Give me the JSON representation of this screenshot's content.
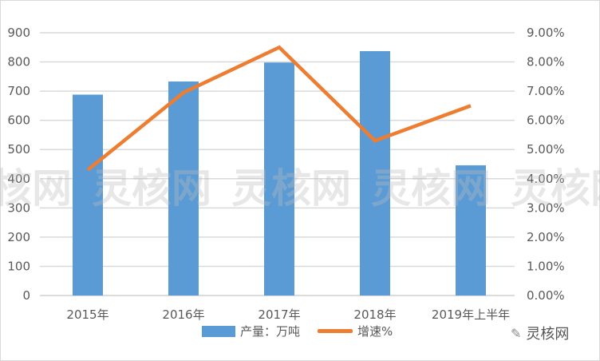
{
  "chart_data": {
    "type": "bar+line",
    "categories": [
      "2015年",
      "2016年",
      "2017年",
      "2018年",
      "2019年上半年"
    ],
    "series": [
      {
        "name": "产量：万吨",
        "type": "bar",
        "axis": "left",
        "color": "#5b9bd5",
        "values": [
          688,
          733,
          798,
          837,
          446
        ]
      },
      {
        "name": "增速%",
        "type": "line",
        "axis": "right",
        "color": "#ed7d31",
        "values": [
          4.3,
          6.95,
          8.5,
          5.3,
          6.5
        ]
      }
    ],
    "ylim": [
      0,
      900
    ],
    "yticks": [
      "0",
      "100",
      "200",
      "300",
      "400",
      "500",
      "600",
      "700",
      "800",
      "900"
    ],
    "y2lim": [
      0,
      9
    ],
    "y2ticks": [
      "0.00%",
      "1.00%",
      "2.00%",
      "3.00%",
      "4.00%",
      "5.00%",
      "6.00%",
      "7.00%",
      "8.00%",
      "9.00%"
    ],
    "grid": true,
    "legend_position": "bottom"
  },
  "watermark": "灵核网",
  "logo_text": "灵核网"
}
